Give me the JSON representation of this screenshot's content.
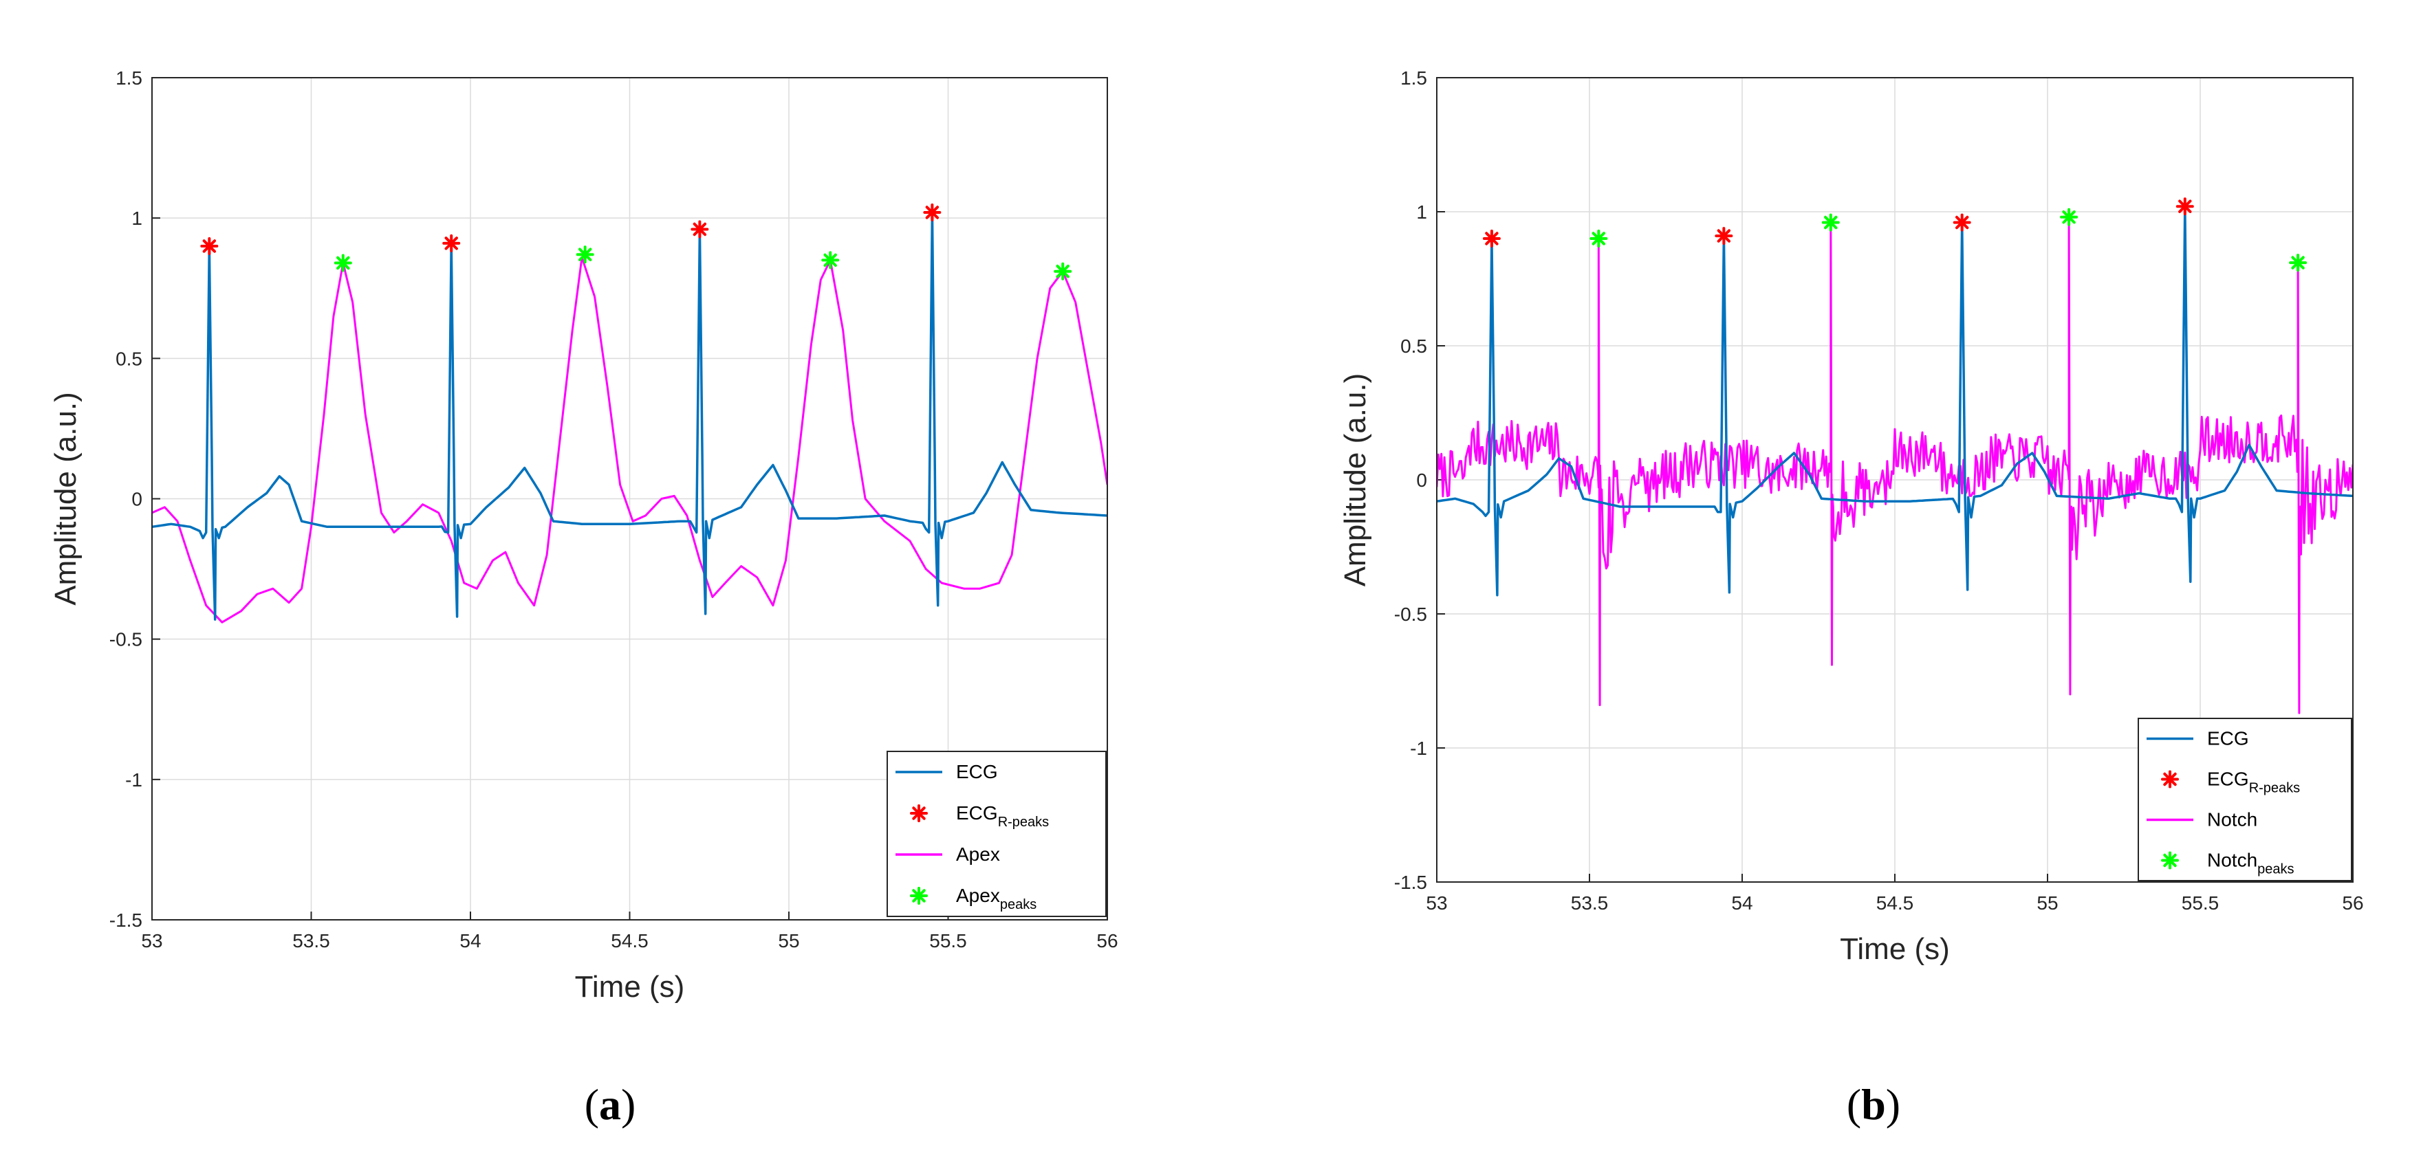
{
  "colors": {
    "ecg": "#0072BD",
    "apex": "#FF00FF",
    "notch": "#FF00FF",
    "r_peaks": "#FF0000",
    "peaks": "#00FF00",
    "grid": "#dcdcdc",
    "axis": "#262626"
  },
  "chart_data": [
    {
      "id": "a",
      "type": "line",
      "caption": {
        "open": "(",
        "letter": "a",
        "close": ")"
      },
      "xlabel": "Time (s)",
      "ylabel": "Amplitude (a.u.)",
      "xlim": [
        53,
        56
      ],
      "ylim": [
        -1.5,
        1.5
      ],
      "xticks": [
        "53",
        "53.5",
        "54",
        "54.5",
        "55",
        "55.5",
        "56"
      ],
      "yticks": [
        "-1.5",
        "-1",
        "-0.5",
        "0",
        "0.5",
        "1",
        "1.5"
      ],
      "grid": true,
      "legend_position": "bottom-right",
      "legend": [
        {
          "label": "ECG",
          "sub": "",
          "kind": "line",
          "color": "#0072BD"
        },
        {
          "label": "ECG",
          "sub": "R-peaks",
          "kind": "marker",
          "color": "#FF0000"
        },
        {
          "label": "Apex",
          "sub": "",
          "kind": "line",
          "color": "#FF00FF"
        },
        {
          "label": "Apex",
          "sub": "peaks",
          "kind": "marker",
          "color": "#00FF00"
        }
      ],
      "ecg": {
        "baseline": [
          [
            53.0,
            -0.1
          ],
          [
            53.06,
            -0.09
          ],
          [
            53.12,
            -0.1
          ],
          [
            53.16,
            -0.12
          ],
          [
            53.23,
            -0.1
          ],
          [
            53.3,
            -0.03
          ],
          [
            53.36,
            0.02
          ],
          [
            53.4,
            0.08
          ],
          [
            53.43,
            0.05
          ],
          [
            53.47,
            -0.08
          ],
          [
            53.55,
            -0.1
          ],
          [
            53.7,
            -0.1
          ],
          [
            53.9,
            -0.1
          ],
          [
            54.0,
            -0.09
          ],
          [
            54.05,
            -0.03
          ],
          [
            54.12,
            0.04
          ],
          [
            54.17,
            0.11
          ],
          [
            54.22,
            0.02
          ],
          [
            54.26,
            -0.08
          ],
          [
            54.35,
            -0.09
          ],
          [
            54.5,
            -0.09
          ],
          [
            54.66,
            -0.08
          ],
          [
            54.75,
            -0.08
          ],
          [
            54.85,
            -0.03
          ],
          [
            54.9,
            0.05
          ],
          [
            54.95,
            0.12
          ],
          [
            54.99,
            0.03
          ],
          [
            55.03,
            -0.07
          ],
          [
            55.15,
            -0.07
          ],
          [
            55.3,
            -0.06
          ],
          [
            55.38,
            -0.08
          ],
          [
            55.45,
            -0.09
          ],
          [
            55.5,
            -0.08
          ],
          [
            55.58,
            -0.05
          ],
          [
            55.62,
            0.02
          ],
          [
            55.67,
            0.13
          ],
          [
            55.71,
            0.05
          ],
          [
            55.76,
            -0.04
          ],
          [
            55.85,
            -0.05
          ],
          [
            56.0,
            -0.06
          ]
        ],
        "beats": [
          {
            "t": 53.18,
            "r": 0.9,
            "s": -0.43
          },
          {
            "t": 53.94,
            "r": 0.91,
            "s": -0.42
          },
          {
            "t": 54.72,
            "r": 0.96,
            "s": -0.41
          },
          {
            "t": 55.45,
            "r": 1.02,
            "s": -0.38
          }
        ]
      },
      "r_peaks": [
        {
          "x": 53.18,
          "y": 0.9
        },
        {
          "x": 53.94,
          "y": 0.91
        },
        {
          "x": 54.72,
          "y": 0.96
        },
        {
          "x": 55.45,
          "y": 1.02
        }
      ],
      "signal2_name": "Apex",
      "signal2": [
        [
          53.0,
          -0.05
        ],
        [
          53.04,
          -0.03
        ],
        [
          53.08,
          -0.08
        ],
        [
          53.12,
          -0.22
        ],
        [
          53.17,
          -0.38
        ],
        [
          53.22,
          -0.44
        ],
        [
          53.28,
          -0.4
        ],
        [
          53.33,
          -0.34
        ],
        [
          53.38,
          -0.32
        ],
        [
          53.43,
          -0.37
        ],
        [
          53.47,
          -0.32
        ],
        [
          53.5,
          -0.1
        ],
        [
          53.54,
          0.3
        ],
        [
          53.57,
          0.65
        ],
        [
          53.6,
          0.84
        ],
        [
          53.63,
          0.7
        ],
        [
          53.67,
          0.3
        ],
        [
          53.72,
          -0.05
        ],
        [
          53.76,
          -0.12
        ],
        [
          53.8,
          -0.08
        ],
        [
          53.85,
          -0.02
        ],
        [
          53.9,
          -0.05
        ],
        [
          53.94,
          -0.15
        ],
        [
          53.98,
          -0.3
        ],
        [
          54.02,
          -0.32
        ],
        [
          54.07,
          -0.22
        ],
        [
          54.11,
          -0.19
        ],
        [
          54.15,
          -0.3
        ],
        [
          54.2,
          -0.38
        ],
        [
          54.24,
          -0.2
        ],
        [
          54.28,
          0.2
        ],
        [
          54.32,
          0.6
        ],
        [
          54.35,
          0.86
        ],
        [
          54.39,
          0.72
        ],
        [
          54.43,
          0.4
        ],
        [
          54.47,
          0.05
        ],
        [
          54.51,
          -0.08
        ],
        [
          54.55,
          -0.06
        ],
        [
          54.6,
          0.0
        ],
        [
          54.64,
          0.01
        ],
        [
          54.68,
          -0.06
        ],
        [
          54.72,
          -0.22
        ],
        [
          54.76,
          -0.35
        ],
        [
          54.8,
          -0.3
        ],
        [
          54.85,
          -0.24
        ],
        [
          54.9,
          -0.28
        ],
        [
          54.95,
          -0.38
        ],
        [
          54.99,
          -0.22
        ],
        [
          55.03,
          0.15
        ],
        [
          55.07,
          0.55
        ],
        [
          55.1,
          0.78
        ],
        [
          55.13,
          0.85
        ],
        [
          55.17,
          0.6
        ],
        [
          55.2,
          0.28
        ],
        [
          55.24,
          0.0
        ],
        [
          55.3,
          -0.08
        ],
        [
          55.38,
          -0.15
        ],
        [
          55.43,
          -0.25
        ],
        [
          55.48,
          -0.3
        ],
        [
          55.55,
          -0.32
        ],
        [
          55.6,
          -0.32
        ],
        [
          55.66,
          -0.3
        ],
        [
          55.7,
          -0.2
        ],
        [
          55.74,
          0.15
        ],
        [
          55.78,
          0.5
        ],
        [
          55.82,
          0.75
        ],
        [
          55.86,
          0.81
        ],
        [
          55.9,
          0.7
        ],
        [
          55.94,
          0.45
        ],
        [
          55.98,
          0.2
        ],
        [
          56.0,
          0.05
        ]
      ],
      "peaks_name": "Apex peaks",
      "peaks": [
        {
          "x": 53.6,
          "y": 0.84
        },
        {
          "x": 54.36,
          "y": 0.87
        },
        {
          "x": 55.13,
          "y": 0.85
        },
        {
          "x": 55.86,
          "y": 0.81
        }
      ]
    },
    {
      "id": "b",
      "type": "line",
      "caption": {
        "open": "(",
        "letter": "b",
        "close": ")"
      },
      "xlabel": "Time (s)",
      "ylabel": "Amplitude (a.u.)",
      "xlim": [
        53,
        56
      ],
      "ylim": [
        -1.5,
        1.5
      ],
      "xticks": [
        "53",
        "53.5",
        "54",
        "54.5",
        "55",
        "55.5",
        "56"
      ],
      "yticks": [
        "-1.5",
        "-1",
        "-0.5",
        "0",
        "0.5",
        "1",
        "1.5"
      ],
      "grid": true,
      "legend_position": "bottom-right",
      "legend": [
        {
          "label": "ECG",
          "sub": "",
          "kind": "line",
          "color": "#0072BD"
        },
        {
          "label": "ECG",
          "sub": "R-peaks",
          "kind": "marker",
          "color": "#FF0000"
        },
        {
          "label": "Notch",
          "sub": "",
          "kind": "line",
          "color": "#FF00FF"
        },
        {
          "label": "Notch",
          "sub": "peaks",
          "kind": "marker",
          "color": "#00FF00"
        }
      ],
      "ecg": {
        "baseline": [
          [
            53.0,
            -0.08
          ],
          [
            53.06,
            -0.07
          ],
          [
            53.12,
            -0.09
          ],
          [
            53.15,
            -0.12
          ],
          [
            53.22,
            -0.08
          ],
          [
            53.3,
            -0.04
          ],
          [
            53.36,
            0.02
          ],
          [
            53.4,
            0.08
          ],
          [
            53.44,
            0.05
          ],
          [
            53.48,
            -0.07
          ],
          [
            53.6,
            -0.1
          ],
          [
            53.8,
            -0.1
          ],
          [
            53.92,
            -0.1
          ],
          [
            54.0,
            -0.08
          ],
          [
            54.05,
            -0.03
          ],
          [
            54.12,
            0.05
          ],
          [
            54.17,
            0.1
          ],
          [
            54.22,
            0.02
          ],
          [
            54.26,
            -0.07
          ],
          [
            54.4,
            -0.08
          ],
          [
            54.55,
            -0.08
          ],
          [
            54.7,
            -0.07
          ],
          [
            54.78,
            -0.06
          ],
          [
            54.85,
            -0.02
          ],
          [
            54.9,
            0.06
          ],
          [
            54.95,
            0.1
          ],
          [
            54.99,
            0.03
          ],
          [
            55.03,
            -0.06
          ],
          [
            55.2,
            -0.07
          ],
          [
            55.3,
            -0.05
          ],
          [
            55.4,
            -0.07
          ],
          [
            55.5,
            -0.07
          ],
          [
            55.58,
            -0.04
          ],
          [
            55.62,
            0.03
          ],
          [
            55.66,
            0.13
          ],
          [
            55.7,
            0.05
          ],
          [
            55.75,
            -0.04
          ],
          [
            55.85,
            -0.05
          ],
          [
            56.0,
            -0.06
          ]
        ],
        "beats": [
          {
            "t": 53.18,
            "r": 0.9,
            "s": -0.43
          },
          {
            "t": 53.94,
            "r": 0.91,
            "s": -0.42
          },
          {
            "t": 54.72,
            "r": 0.96,
            "s": -0.41
          },
          {
            "t": 55.45,
            "r": 1.02,
            "s": -0.38
          }
        ]
      },
      "r_peaks": [
        {
          "x": 53.18,
          "y": 0.9
        },
        {
          "x": 53.94,
          "y": 0.91
        },
        {
          "x": 54.72,
          "y": 0.96
        },
        {
          "x": 55.45,
          "y": 1.02
        }
      ],
      "signal2_name": "Notch",
      "signal2_noise": {
        "seed": 7,
        "points": 600,
        "bumps": [
          [
            53.1,
            53.4,
            0.13
          ],
          [
            53.8,
            54.05,
            0.06
          ],
          [
            54.15,
            54.4,
            0.05
          ],
          [
            54.5,
            54.65,
            0.1
          ],
          [
            54.8,
            55.0,
            0.08
          ],
          [
            55.5,
            55.85,
            0.15
          ]
        ]
      },
      "signal2_spikes": [
        {
          "t": 53.53,
          "up": 0.9,
          "down": -0.84
        },
        {
          "t": 54.29,
          "up": 0.96,
          "down": -0.69
        },
        {
          "t": 55.07,
          "up": 0.98,
          "down": -0.8
        },
        {
          "t": 55.82,
          "up": 0.81,
          "down": -0.87
        }
      ],
      "peaks_name": "Notch peaks",
      "peaks": [
        {
          "x": 53.53,
          "y": 0.9
        },
        {
          "x": 54.29,
          "y": 0.96
        },
        {
          "x": 55.07,
          "y": 0.98
        },
        {
          "x": 55.82,
          "y": 0.81
        }
      ]
    }
  ]
}
